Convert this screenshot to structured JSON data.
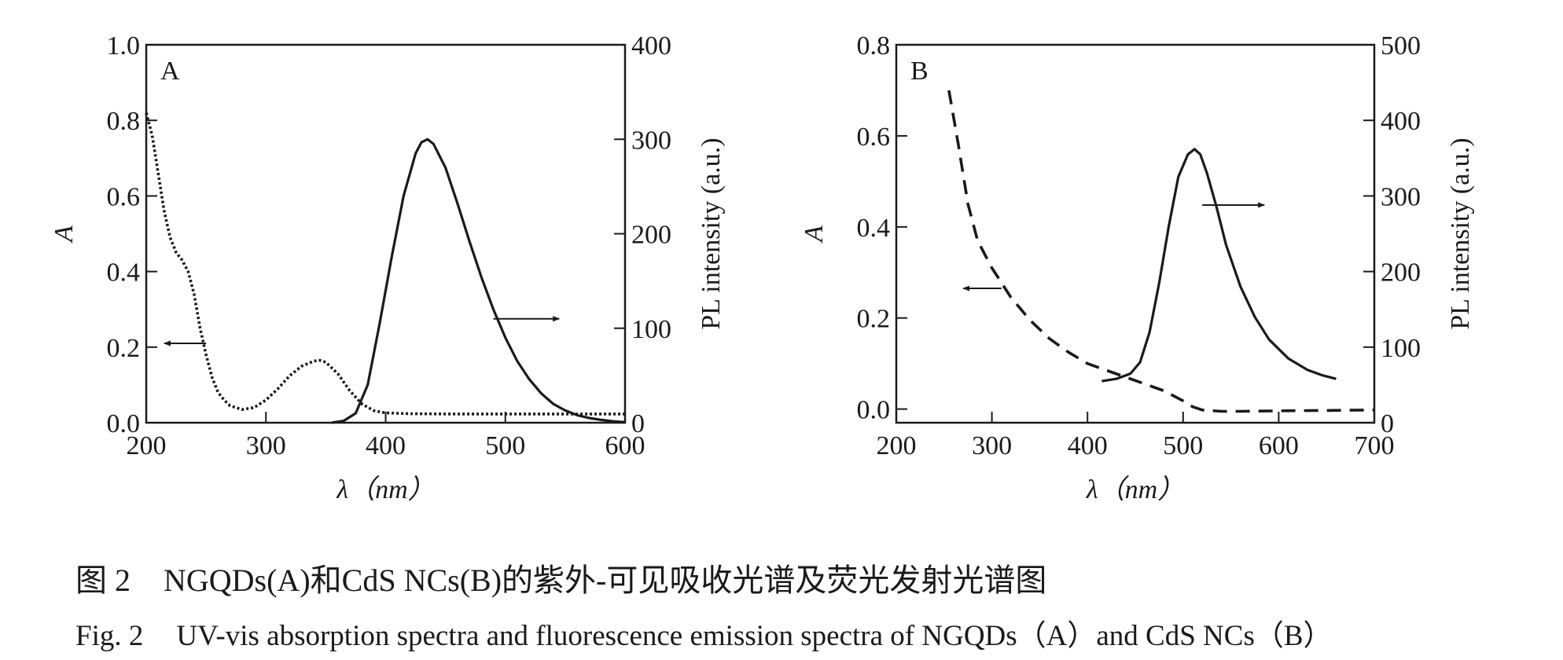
{
  "chart_data": [
    {
      "panel": "A",
      "type": "line",
      "xlabel": "λ（nm）",
      "ylabel_left": "A",
      "ylabel_right": "PL intensity (a.u.)",
      "xlim": [
        200,
        600
      ],
      "ylim_left": [
        0,
        1.0
      ],
      "ylim_right": [
        0,
        400
      ],
      "xticks": [
        "200",
        "300",
        "400",
        "500",
        "600"
      ],
      "yticks_left": [
        "0.0",
        "0.2",
        "0.4",
        "0.6",
        "0.8",
        "1.0"
      ],
      "yticks_right": [
        "0",
        "100",
        "200",
        "300",
        "400"
      ],
      "grid": false,
      "series": [
        {
          "style": "dotted",
          "axis": "left",
          "x": [
            200,
            205,
            210,
            215,
            220,
            225,
            230,
            235,
            240,
            245,
            250,
            255,
            260,
            265,
            270,
            280,
            290,
            300,
            310,
            320,
            330,
            340,
            345,
            350,
            360,
            370,
            380,
            390,
            400,
            420,
            450,
            500,
            550,
            600
          ],
          "y": [
            0.82,
            0.76,
            0.66,
            0.56,
            0.49,
            0.45,
            0.43,
            0.4,
            0.34,
            0.25,
            0.18,
            0.12,
            0.08,
            0.06,
            0.045,
            0.035,
            0.04,
            0.06,
            0.09,
            0.125,
            0.15,
            0.163,
            0.165,
            0.16,
            0.13,
            0.085,
            0.05,
            0.032,
            0.026,
            0.024,
            0.023,
            0.023,
            0.023,
            0.023
          ]
        },
        {
          "style": "solid",
          "axis": "right",
          "x": [
            355,
            365,
            375,
            385,
            395,
            405,
            415,
            425,
            430,
            435,
            440,
            450,
            460,
            470,
            480,
            490,
            500,
            510,
            520,
            530,
            540,
            550,
            560,
            570,
            580,
            590,
            600
          ],
          "y": [
            0,
            2,
            10,
            40,
            105,
            175,
            240,
            285,
            297,
            300,
            295,
            270,
            232,
            192,
            154,
            120,
            90,
            65,
            46,
            31,
            20,
            13,
            8,
            5,
            3,
            1.5,
            0.5
          ]
        }
      ],
      "arrows": [
        {
          "direction": "left",
          "axis": "left",
          "x_from": 250,
          "x_to": 215,
          "y": 0.21
        },
        {
          "direction": "right",
          "axis": "right",
          "x_from": 490,
          "x_to": 545,
          "y": 110
        }
      ]
    },
    {
      "panel": "B",
      "type": "line",
      "xlabel": "λ（nm）",
      "ylabel_left": "A",
      "ylabel_right": "PL intensity (a.u.)",
      "xlim": [
        200,
        700
      ],
      "ylim_left": [
        -0.03,
        0.8
      ],
      "ylim_right": [
        0,
        500
      ],
      "xticks": [
        "200",
        "300",
        "400",
        "500",
        "600",
        "700"
      ],
      "yticks_left": [
        "0.0",
        "0.2",
        "0.4",
        "0.6",
        "0.8"
      ],
      "yticks_right": [
        "0",
        "100",
        "200",
        "300",
        "400",
        "500"
      ],
      "grid": false,
      "series": [
        {
          "style": "dashed",
          "axis": "left",
          "x": [
            255,
            265,
            275,
            285,
            300,
            320,
            340,
            360,
            380,
            400,
            420,
            440,
            460,
            480,
            500,
            510,
            520,
            540,
            560,
            600,
            650,
            700
          ],
          "y": [
            0.7,
            0.58,
            0.45,
            0.37,
            0.31,
            0.245,
            0.195,
            0.155,
            0.125,
            0.1,
            0.085,
            0.07,
            0.055,
            0.04,
            0.018,
            0.005,
            -0.002,
            -0.005,
            -0.005,
            -0.004,
            -0.003,
            -0.002
          ]
        },
        {
          "style": "solid",
          "axis": "right",
          "x": [
            415,
            430,
            445,
            455,
            465,
            475,
            485,
            495,
            505,
            512,
            518,
            525,
            535,
            545,
            560,
            575,
            590,
            610,
            630,
            645,
            660
          ],
          "y": [
            55,
            58,
            65,
            80,
            120,
            185,
            260,
            325,
            355,
            362,
            355,
            330,
            285,
            235,
            180,
            140,
            110,
            85,
            70,
            63,
            58
          ]
        }
      ],
      "arrows": [
        {
          "direction": "left",
          "axis": "left",
          "x_from": 310,
          "x_to": 270,
          "y": 0.265
        },
        {
          "direction": "right",
          "axis": "right",
          "x_from": 520,
          "x_to": 585,
          "y": 288
        }
      ]
    }
  ],
  "caption": {
    "zh_num": "图 2",
    "zh_text": "NGQDs(A)和CdS NCs(B)的紫外-可见吸收光谱及荧光发射光谱图",
    "en_num": "Fig. 2",
    "en_text": "UV-vis absorption spectra and fluorescence emission spectra of NGQDs（A）and CdS NCs（B）"
  }
}
